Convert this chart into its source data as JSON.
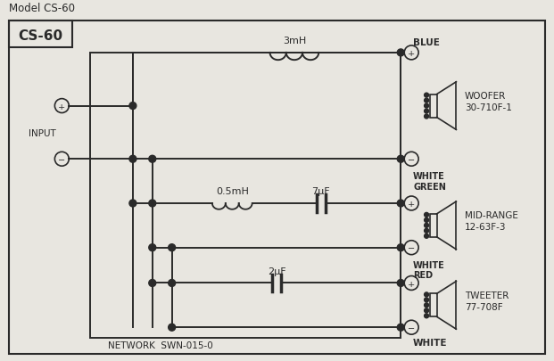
{
  "bg_color": "#e8e6e0",
  "inner_bg": "#f0eeea",
  "line_color": "#2a2a2a",
  "title": "Model CS-60",
  "box_label": "CS-60",
  "network_label": "NETWORK  SWN-015-0",
  "components": {
    "inductor1_label": "3mH",
    "inductor2_label": "0.5mH",
    "cap1_label": "7μF",
    "cap2_label": "2μF"
  }
}
